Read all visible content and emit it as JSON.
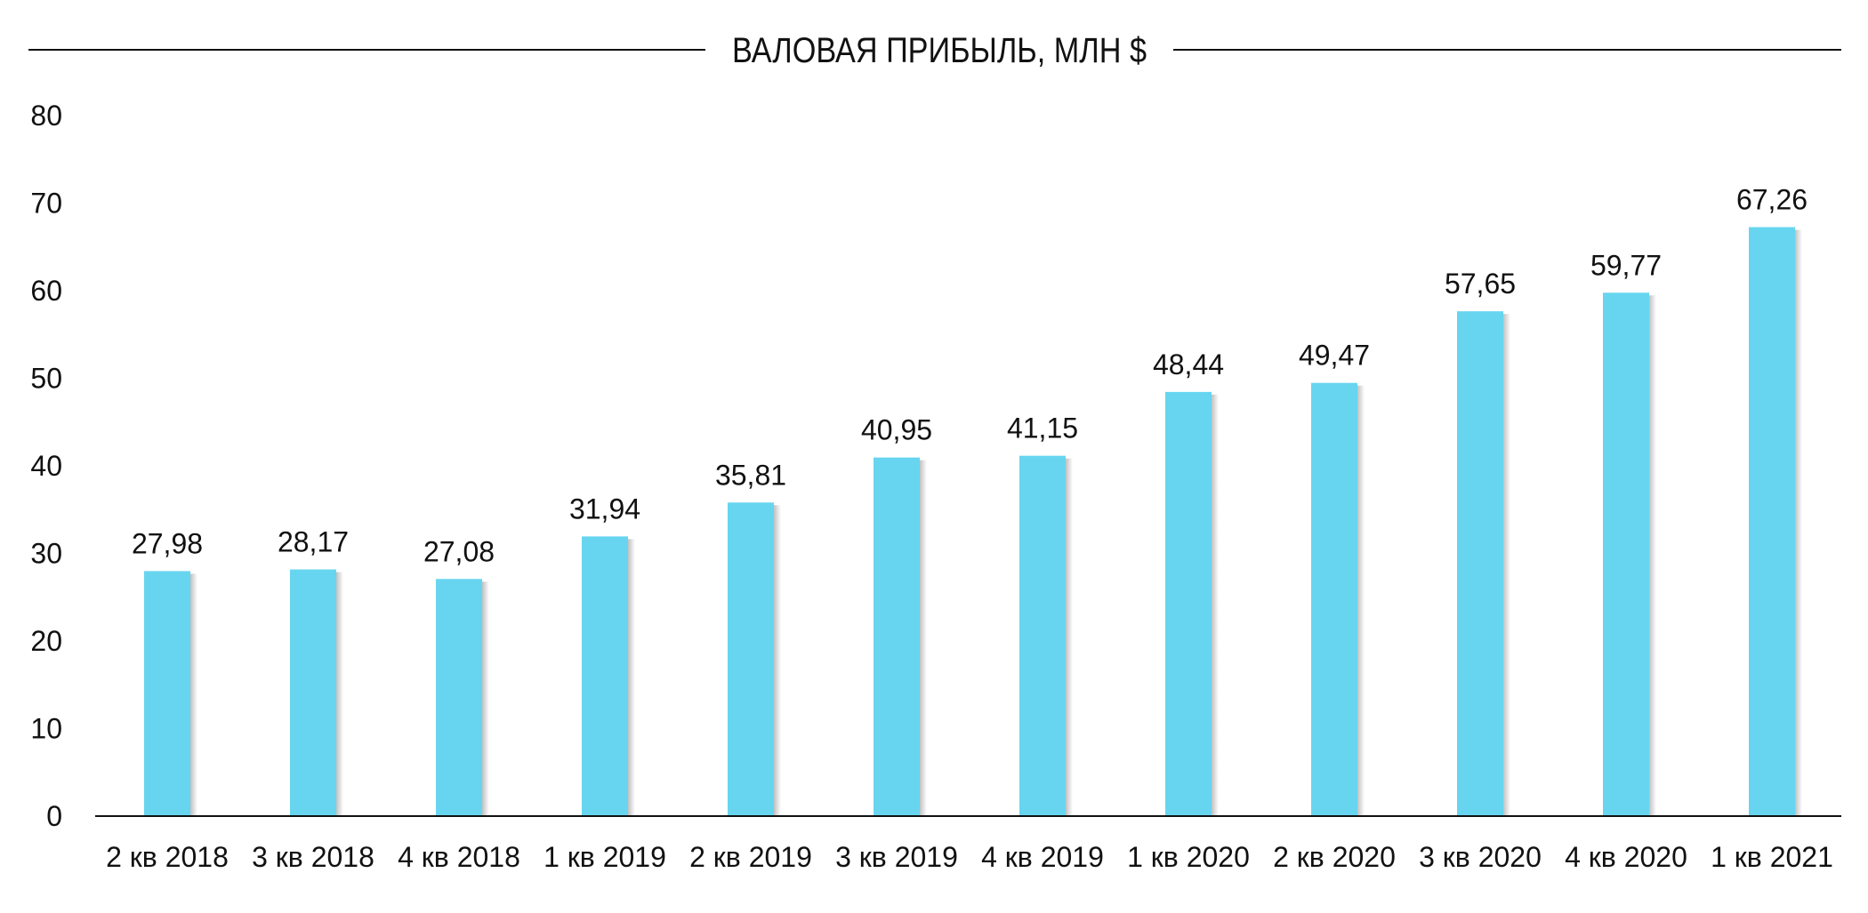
{
  "chart_data": {
    "type": "bar",
    "title": "ВАЛОВАЯ ПРИБЫЛЬ, МЛН $",
    "xlabel": "",
    "ylabel": "",
    "categories": [
      "2 кв 2018",
      "3 кв 2018",
      "4 кв 2018",
      "1 кв 2019",
      "2 кв 2019",
      "3 кв 2019",
      "4 кв 2019",
      "1 кв 2020",
      "2 кв 2020",
      "3 кв 2020",
      "4 кв 2020",
      "1 кв 2021"
    ],
    "values": [
      27.98,
      28.17,
      27.08,
      31.94,
      35.81,
      40.95,
      41.15,
      48.44,
      49.47,
      57.65,
      59.77,
      67.26
    ],
    "value_labels": [
      "27,98",
      "28,17",
      "27,08",
      "31,94",
      "35,81",
      "40,95",
      "41,15",
      "48,44",
      "49,47",
      "57,65",
      "59,77",
      "67,26"
    ],
    "ylim": [
      0,
      80
    ],
    "yticks": [
      0,
      10,
      20,
      30,
      40,
      50,
      60,
      70,
      80
    ],
    "grid": false,
    "legend": "none",
    "colors": {
      "bar": "#67d5ef",
      "bar_shadow": "#b9b9b9",
      "axis": "#111111",
      "text": "#111111"
    }
  }
}
